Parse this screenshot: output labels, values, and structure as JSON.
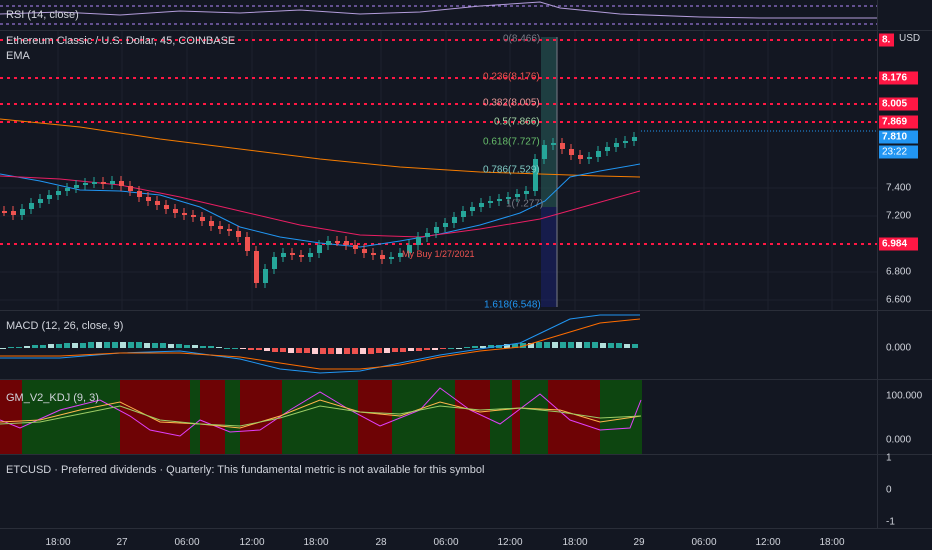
{
  "rsi": {
    "title": "RSI (14, close)"
  },
  "main": {
    "title": "Ethereum Classic / U.S. Dollar, 45, COINBASE",
    "indicator": "EMA",
    "currency": "USD",
    "axis_ticks": [
      "7.400",
      "7.200",
      "7.000",
      "6.800",
      "6.600"
    ],
    "price_tags": {
      "top": "8.",
      "t8176": "8.176",
      "t8005": "8.005",
      "t7869": "7.869",
      "last": "7.810",
      "countdown": "23:22",
      "t6984": "6.984"
    },
    "fib_levels": [
      "0(8.466)",
      "0.236(8.176)",
      "0.382(8.005)",
      "0.5(7.866)",
      "0.618(7.727)",
      "0.786(7.529)",
      "1(7.277)",
      "1.618(6.548)"
    ],
    "annotation": "My Buy 1/27/2021"
  },
  "macd": {
    "title": "MACD (12, 26, close, 9)",
    "axis_tick": "0.000"
  },
  "kdj": {
    "title": "GM_V2_KDJ (9, 3)",
    "axis_ticks": [
      "100.000",
      "0.000"
    ]
  },
  "etc": {
    "title": "ETCUSD · Preferred dividends · Quarterly: This fundamental metric is not available for this symbol",
    "axis_ticks": [
      "1",
      "0",
      "-1"
    ]
  },
  "time_axis": [
    "18:00",
    "27",
    "06:00",
    "12:00",
    "18:00",
    "28",
    "06:00",
    "12:00",
    "18:00",
    "29",
    "06:00",
    "12:00",
    "18:00"
  ],
  "colors": {
    "up": "#26a69a",
    "down": "#ef5350",
    "fib_red": "#ff1744",
    "blue_tag": "#2196f3",
    "ema_orange": "#f57c00",
    "ema_blue": "#2196f3",
    "ema_purple": "#e91e63"
  }
}
